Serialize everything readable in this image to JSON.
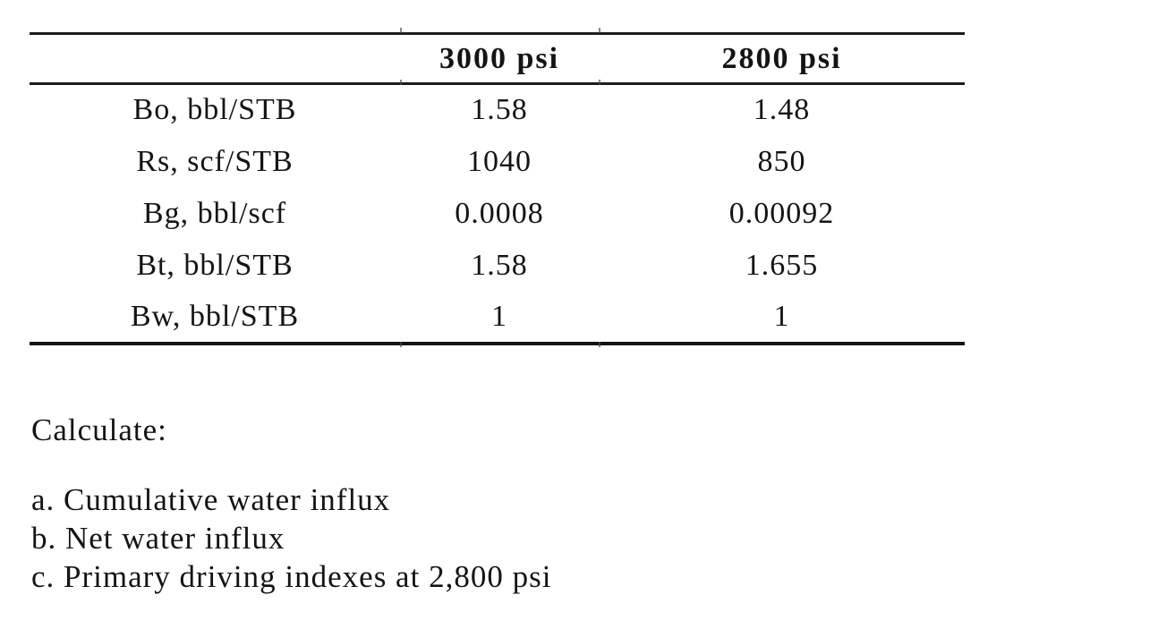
{
  "table": {
    "columns": [
      "3000 psi",
      "2800 psi"
    ],
    "rows": [
      {
        "label": "Bo, bbl/STB",
        "values": [
          "1.58",
          "1.48"
        ]
      },
      {
        "label": "Rs, scf/STB",
        "values": [
          "1040",
          "850"
        ]
      },
      {
        "label": "Bg, bbl/scf",
        "values": [
          "0.0008",
          "0.00092"
        ]
      },
      {
        "label": "Bt, bbl/STB",
        "values": [
          "1.58",
          "1.655"
        ]
      },
      {
        "label": "Bw, bbl/STB",
        "values": [
          "1",
          "1"
        ]
      }
    ]
  },
  "text": {
    "calculate_heading": "Calculate:",
    "items": [
      "a. Cumulative water influx",
      "b. Net water influx",
      "c. Primary driving indexes at 2,800 psi"
    ]
  },
  "colors": {
    "text": "#141414",
    "rule": "#1c1c1c",
    "background": "#ffffff"
  }
}
